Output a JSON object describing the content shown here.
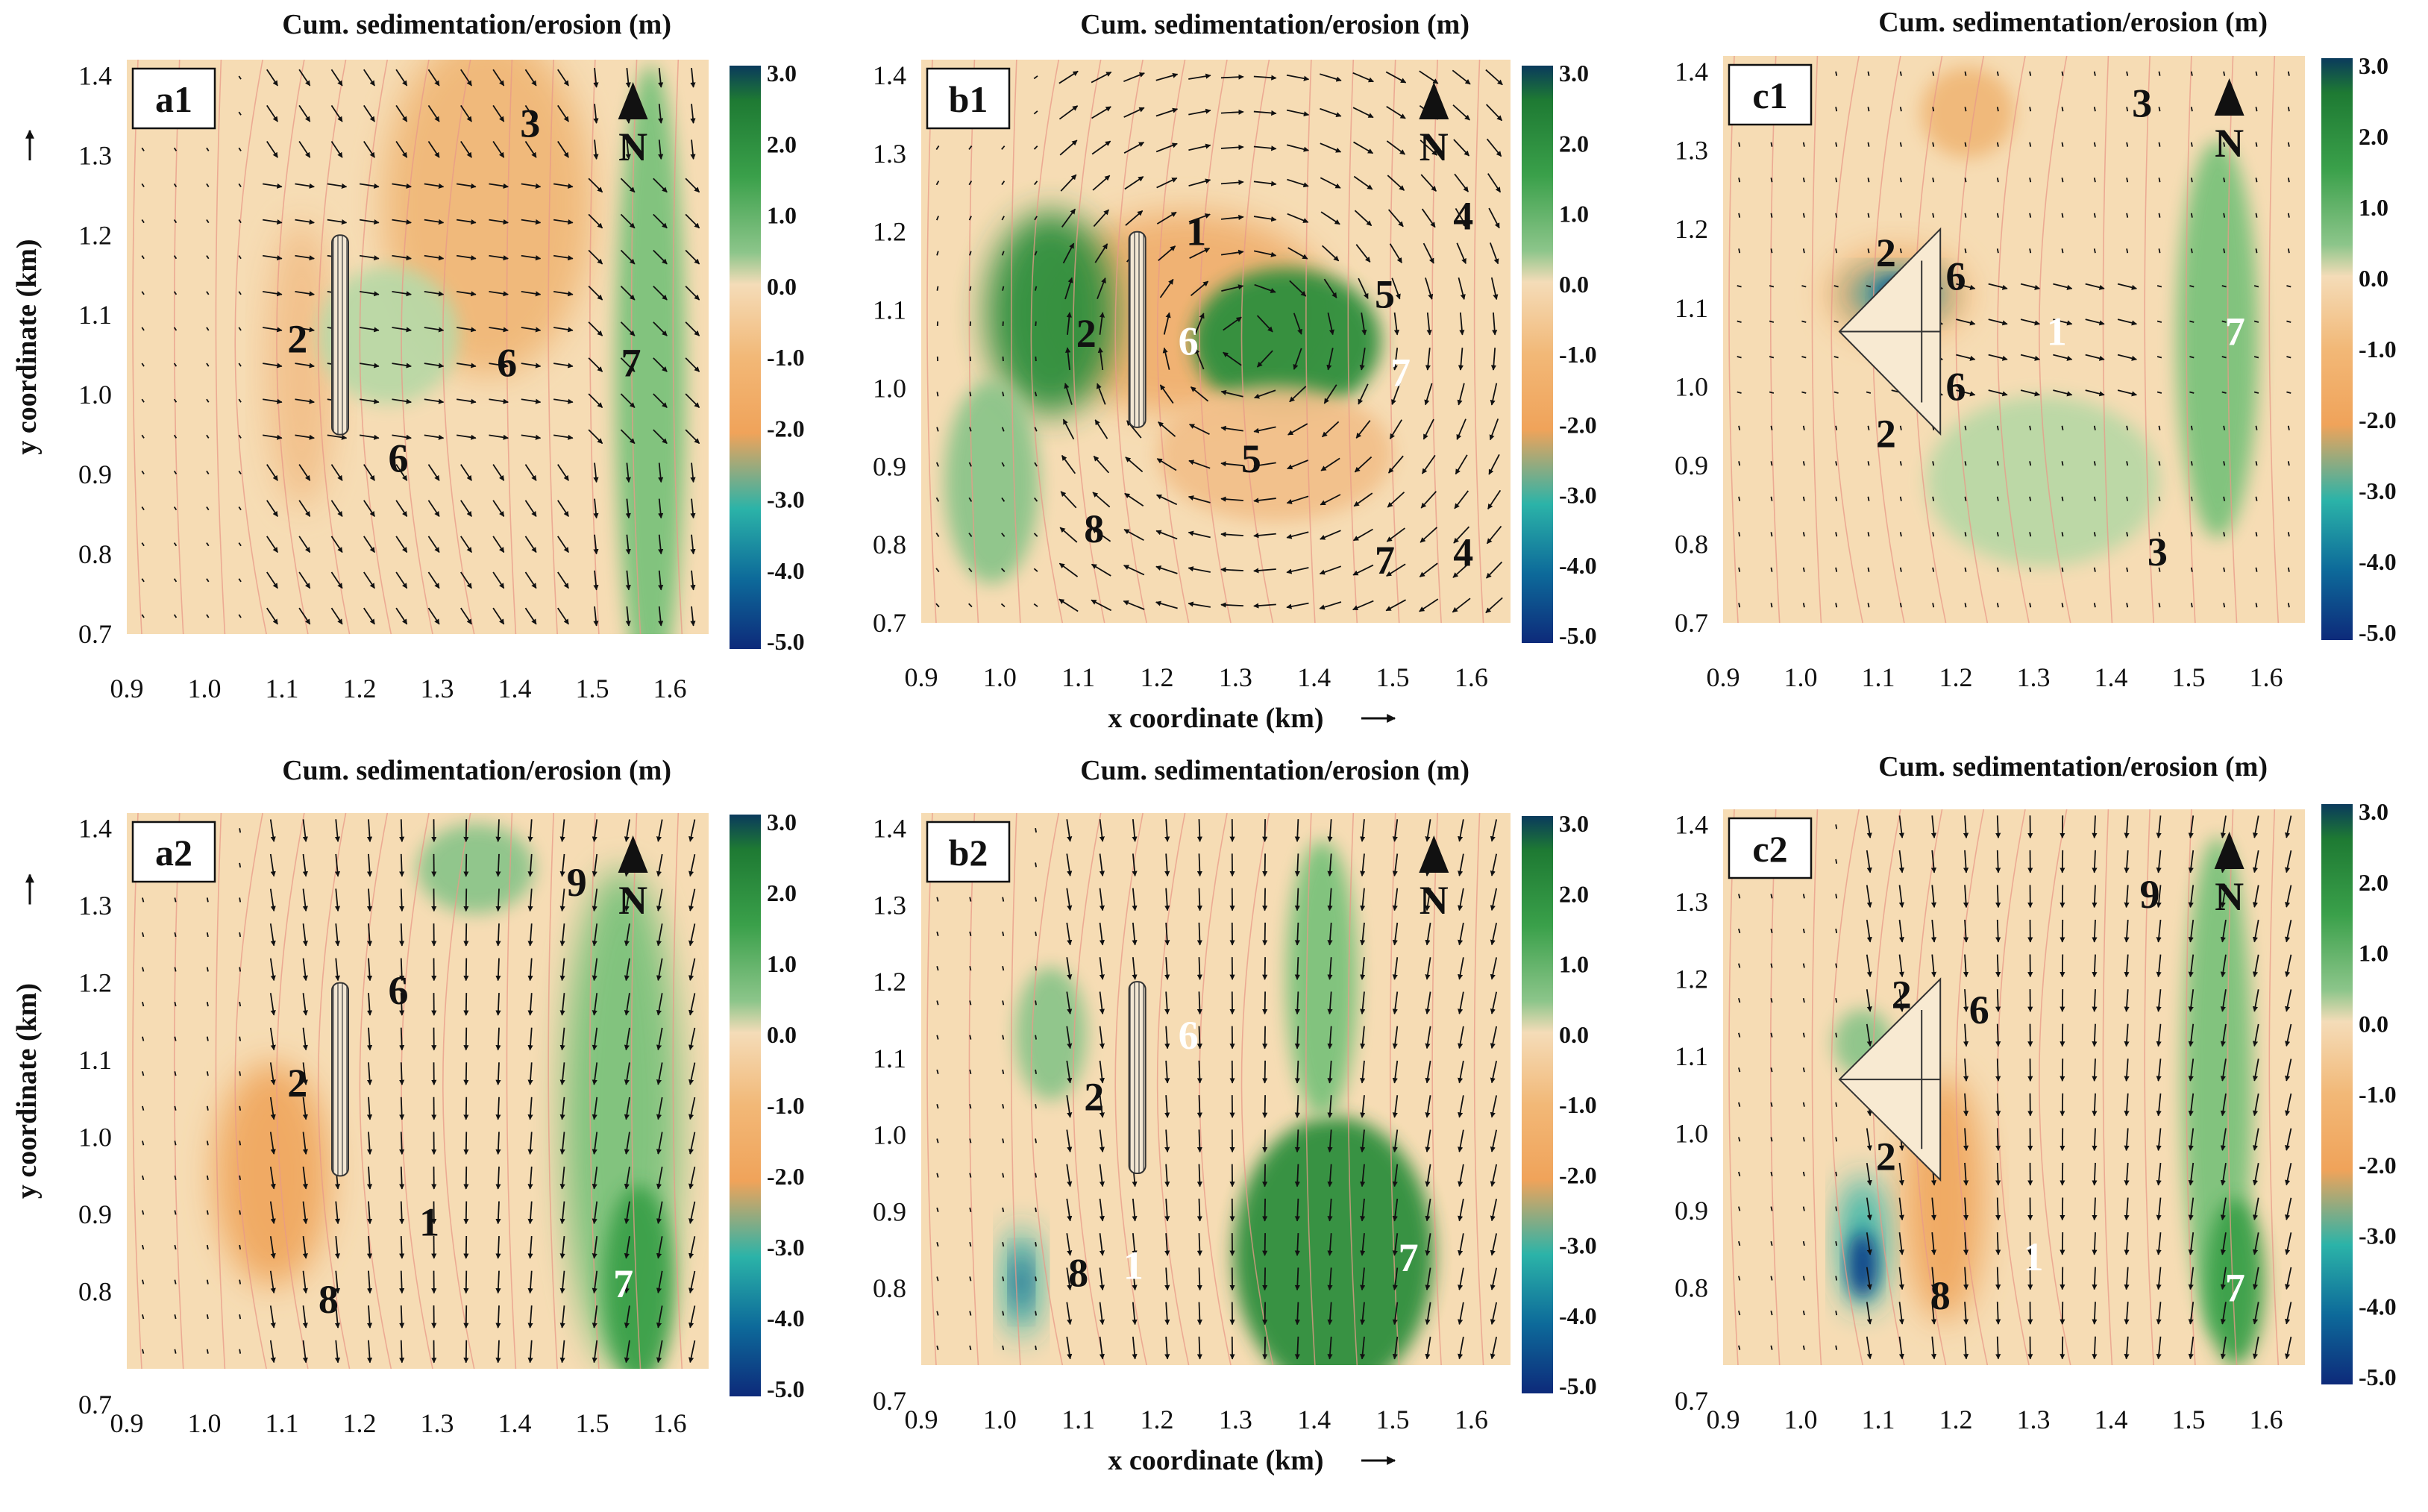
{
  "figure": {
    "colorbar_title": "Cum. sedimentation/erosion (m)",
    "colorbar_ticks": [
      "3.0",
      "2.0",
      "1.0",
      "0.0",
      "-1.0",
      "-2.0",
      "-3.0",
      "-4.0",
      "-5.0"
    ],
    "colorbar_colors": [
      "#0a3a5c",
      "#1e7a33",
      "#3aa04a",
      "#8cc58a",
      "#f4dcb8",
      "#f2b877",
      "#f0a35a",
      "#2bb3a8",
      "#0d2a7a"
    ],
    "x_ticks": [
      "0.9",
      "1.0",
      "1.1",
      "1.2",
      "1.3",
      "1.4",
      "1.5",
      "1.6"
    ],
    "y_ticks": [
      "1.4",
      "1.3",
      "1.2",
      "1.1",
      "1.0",
      "0.9",
      "0.8",
      "0.7"
    ],
    "y_ticks_short": [
      "1.4",
      "1.3",
      "1.2",
      "1.1",
      "1.0",
      "0.9",
      "0.8"
    ],
    "x_axis_label": "x coordinate (km)",
    "y_axis_label": "y coordinate (km)",
    "north_letter": "N"
  },
  "chart_data": [
    {
      "type": "heatmap",
      "panel": "a1",
      "title": "Cum. sedimentation/erosion (m)",
      "xlabel": "",
      "ylabel": "y coordinate (km)",
      "xlim": [
        0.9,
        1.65
      ],
      "ylim": [
        0.7,
        1.42
      ],
      "colorbar_range": [
        -5.0,
        3.0
      ],
      "zone_labels": [
        {
          "text": "2",
          "x": 1.12,
          "y": 1.07
        },
        {
          "text": "3",
          "x": 1.42,
          "y": 1.34
        },
        {
          "text": "6",
          "x": 1.39,
          "y": 1.04
        },
        {
          "text": "6",
          "x": 1.25,
          "y": 0.92
        },
        {
          "text": "7",
          "x": 1.55,
          "y": 1.04
        }
      ]
    },
    {
      "type": "heatmap",
      "panel": "b1",
      "title": "Cum. sedimentation/erosion (m)",
      "xlabel": "x coordinate (km)",
      "ylabel": "",
      "xlim": [
        0.9,
        1.65
      ],
      "ylim": [
        0.7,
        1.42
      ],
      "colorbar_range": [
        -5.0,
        3.0
      ],
      "zone_labels": [
        {
          "text": "1",
          "x": 1.25,
          "y": 1.2
        },
        {
          "text": "2",
          "x": 1.11,
          "y": 1.07
        },
        {
          "text": "6",
          "x": 1.24,
          "y": 1.06
        },
        {
          "text": "4",
          "x": 1.59,
          "y": 1.22
        },
        {
          "text": "5",
          "x": 1.49,
          "y": 1.12
        },
        {
          "text": "7",
          "x": 1.51,
          "y": 1.02
        },
        {
          "text": "5",
          "x": 1.32,
          "y": 0.91
        },
        {
          "text": "8",
          "x": 1.12,
          "y": 0.82
        },
        {
          "text": "7",
          "x": 1.49,
          "y": 0.78
        },
        {
          "text": "4",
          "x": 1.59,
          "y": 0.79
        }
      ]
    },
    {
      "type": "heatmap",
      "panel": "c1",
      "title": "Cum. sedimentation/erosion (m)",
      "xlabel": "",
      "ylabel": "",
      "xlim": [
        0.9,
        1.65
      ],
      "ylim": [
        0.7,
        1.42
      ],
      "colorbar_range": [
        -5.0,
        3.0
      ],
      "zone_labels": [
        {
          "text": "3",
          "x": 1.44,
          "y": 1.36
        },
        {
          "text": "2",
          "x": 1.11,
          "y": 1.17
        },
        {
          "text": "6",
          "x": 1.2,
          "y": 1.14
        },
        {
          "text": "1",
          "x": 1.33,
          "y": 1.07
        },
        {
          "text": "7",
          "x": 1.56,
          "y": 1.07
        },
        {
          "text": "6",
          "x": 1.2,
          "y": 1.0
        },
        {
          "text": "2",
          "x": 1.11,
          "y": 0.94
        },
        {
          "text": "3",
          "x": 1.46,
          "y": 0.79
        }
      ]
    },
    {
      "type": "heatmap",
      "panel": "a2",
      "title": "Cum. sedimentation/erosion (m)",
      "xlabel": "",
      "ylabel": "y coordinate (km)",
      "xlim": [
        0.9,
        1.65
      ],
      "ylim": [
        0.7,
        1.42
      ],
      "colorbar_range": [
        -5.0,
        3.0
      ],
      "zone_labels": [
        {
          "text": "9",
          "x": 1.48,
          "y": 1.33
        },
        {
          "text": "6",
          "x": 1.25,
          "y": 1.19
        },
        {
          "text": "2",
          "x": 1.12,
          "y": 1.07
        },
        {
          "text": "1",
          "x": 1.29,
          "y": 0.89
        },
        {
          "text": "8",
          "x": 1.16,
          "y": 0.79
        },
        {
          "text": "7",
          "x": 1.54,
          "y": 0.81
        }
      ]
    },
    {
      "type": "heatmap",
      "panel": "b2",
      "title": "Cum. sedimentation/erosion (m)",
      "xlabel": "x coordinate (km)",
      "ylabel": "",
      "xlim": [
        0.9,
        1.65
      ],
      "ylim": [
        0.7,
        1.42
      ],
      "colorbar_range": [
        -5.0,
        3.0
      ],
      "zone_labels": [
        {
          "text": "6",
          "x": 1.24,
          "y": 1.13
        },
        {
          "text": "2",
          "x": 1.12,
          "y": 1.05
        },
        {
          "text": "1",
          "x": 1.17,
          "y": 0.83
        },
        {
          "text": "8",
          "x": 1.1,
          "y": 0.82
        },
        {
          "text": "7",
          "x": 1.52,
          "y": 0.84
        }
      ]
    },
    {
      "type": "heatmap",
      "panel": "c2",
      "title": "Cum. sedimentation/erosion (m)",
      "xlabel": "",
      "ylabel": "",
      "xlim": [
        0.9,
        1.65
      ],
      "ylim": [
        0.7,
        1.42
      ],
      "colorbar_range": [
        -5.0,
        3.0
      ],
      "zone_labels": [
        {
          "text": "9",
          "x": 1.45,
          "y": 1.31
        },
        {
          "text": "2",
          "x": 1.13,
          "y": 1.18
        },
        {
          "text": "6",
          "x": 1.23,
          "y": 1.16
        },
        {
          "text": "2",
          "x": 1.11,
          "y": 0.97
        },
        {
          "text": "1",
          "x": 1.3,
          "y": 0.84
        },
        {
          "text": "8",
          "x": 1.18,
          "y": 0.79
        },
        {
          "text": "7",
          "x": 1.56,
          "y": 0.8
        }
      ]
    }
  ],
  "panels": [
    {
      "id": "a1",
      "structure": "groin",
      "north": true
    },
    {
      "id": "b1",
      "structure": "groin",
      "north": true
    },
    {
      "id": "c1",
      "structure": "triangle",
      "north": true
    },
    {
      "id": "a2",
      "structure": "groin",
      "north": true
    },
    {
      "id": "b2",
      "structure": "groin",
      "north": true
    },
    {
      "id": "c2",
      "structure": "triangle",
      "north": true
    }
  ]
}
